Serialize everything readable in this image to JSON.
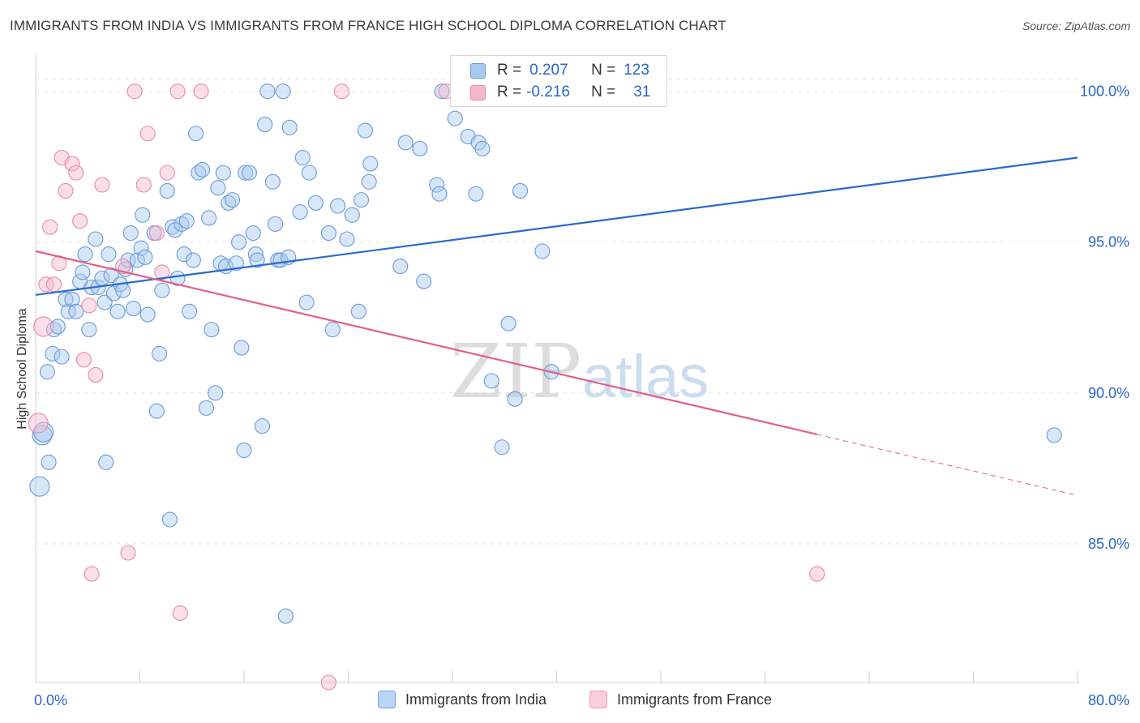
{
  "title": "IMMIGRANTS FROM INDIA VS IMMIGRANTS FROM FRANCE HIGH SCHOOL DIPLOMA CORRELATION CHART",
  "source": "Source: ZipAtlas.com",
  "watermark": {
    "zip": "ZIP",
    "atlas": "atlas"
  },
  "legend": {
    "india": {
      "r_label": "R =",
      "r_value": "0.207",
      "n_label": "N =",
      "n_value": "123"
    },
    "france": {
      "r_label": "R =",
      "r_value": "-0.216",
      "n_label": "N =",
      "n_value": "31"
    }
  },
  "colors": {
    "india_fill": "#a9c9f0",
    "india_stroke": "#6a9ad8",
    "india_line": "#2a6acb",
    "france_fill": "#f6b9cc",
    "france_stroke": "#e88aaa",
    "france_line": "#e0608c",
    "value_text": "#2a66c8"
  },
  "chart_data": {
    "type": "scatter",
    "title": "IMMIGRANTS FROM INDIA VS IMMIGRANTS FROM FRANCE HIGH SCHOOL DIPLOMA CORRELATION CHART",
    "xlabel": "",
    "ylabel": "High School Diploma",
    "xlim": [
      0,
      80
    ],
    "ylim": [
      80.4,
      101.2
    ],
    "x_tick_labels": [
      "0.0%",
      "80.0%"
    ],
    "y_ticks": [
      85,
      90,
      95,
      100
    ],
    "y_tick_labels": [
      "85.0%",
      "90.0%",
      "95.0%",
      "100.0%"
    ],
    "grid": true,
    "legend_position": "top-center",
    "series": [
      {
        "name": "Immigrants from India",
        "r": 0.207,
        "n": 123,
        "trend": {
          "x": [
            0,
            80
          ],
          "y": [
            93.25,
            97.8
          ],
          "dashed_from_x": null
        },
        "points": [
          [
            0.3,
            86.9
          ],
          [
            0.5,
            88.6
          ],
          [
            0.6,
            88.7
          ],
          [
            1.0,
            87.7
          ],
          [
            0.9,
            90.7
          ],
          [
            1.3,
            91.3
          ],
          [
            1.4,
            92.1
          ],
          [
            1.7,
            92.2
          ],
          [
            2.0,
            91.2
          ],
          [
            2.3,
            93.1
          ],
          [
            2.5,
            92.7
          ],
          [
            2.8,
            93.1
          ],
          [
            3.1,
            92.7
          ],
          [
            3.4,
            93.7
          ],
          [
            3.6,
            94.0
          ],
          [
            3.8,
            94.6
          ],
          [
            4.1,
            92.1
          ],
          [
            4.3,
            93.5
          ],
          [
            4.6,
            95.1
          ],
          [
            4.8,
            93.5
          ],
          [
            5.1,
            93.8
          ],
          [
            5.3,
            93.0
          ],
          [
            5.4,
            87.7
          ],
          [
            5.6,
            94.6
          ],
          [
            5.8,
            93.9
          ],
          [
            6.0,
            93.3
          ],
          [
            6.3,
            92.7
          ],
          [
            6.5,
            93.6
          ],
          [
            6.7,
            93.4
          ],
          [
            6.9,
            94.1
          ],
          [
            7.1,
            94.4
          ],
          [
            7.3,
            95.3
          ],
          [
            7.5,
            92.8
          ],
          [
            7.8,
            94.4
          ],
          [
            8.1,
            94.8
          ],
          [
            8.2,
            95.9
          ],
          [
            8.4,
            94.5
          ],
          [
            8.6,
            92.6
          ],
          [
            9.1,
            95.3
          ],
          [
            9.3,
            89.4
          ],
          [
            9.5,
            91.3
          ],
          [
            9.7,
            93.4
          ],
          [
            10.1,
            96.7
          ],
          [
            10.3,
            85.8
          ],
          [
            10.5,
            95.5
          ],
          [
            10.7,
            95.4
          ],
          [
            10.9,
            93.8
          ],
          [
            11.2,
            95.6
          ],
          [
            11.4,
            94.6
          ],
          [
            11.6,
            95.7
          ],
          [
            11.8,
            92.7
          ],
          [
            12.1,
            94.4
          ],
          [
            12.3,
            98.6
          ],
          [
            12.5,
            97.3
          ],
          [
            12.8,
            97.4
          ],
          [
            13.1,
            89.5
          ],
          [
            13.3,
            95.8
          ],
          [
            13.5,
            92.1
          ],
          [
            13.8,
            90.0
          ],
          [
            14.0,
            96.8
          ],
          [
            14.2,
            94.3
          ],
          [
            14.4,
            97.3
          ],
          [
            14.6,
            94.2
          ],
          [
            14.8,
            96.3
          ],
          [
            15.1,
            96.4
          ],
          [
            15.4,
            94.3
          ],
          [
            15.6,
            95.0
          ],
          [
            15.8,
            91.5
          ],
          [
            16.0,
            88.1
          ],
          [
            16.1,
            97.3
          ],
          [
            16.4,
            97.3
          ],
          [
            16.7,
            95.3
          ],
          [
            16.9,
            94.6
          ],
          [
            17.0,
            94.4
          ],
          [
            17.4,
            88.9
          ],
          [
            17.6,
            98.9
          ],
          [
            17.8,
            100.0
          ],
          [
            18.2,
            97.0
          ],
          [
            18.4,
            95.6
          ],
          [
            18.6,
            94.4
          ],
          [
            18.8,
            94.4
          ],
          [
            19.0,
            100.0
          ],
          [
            19.2,
            82.6
          ],
          [
            19.4,
            94.5
          ],
          [
            19.5,
            98.8
          ],
          [
            20.3,
            96.0
          ],
          [
            20.5,
            97.8
          ],
          [
            20.8,
            93.0
          ],
          [
            21.0,
            97.3
          ],
          [
            21.5,
            96.3
          ],
          [
            22.5,
            95.3
          ],
          [
            22.8,
            92.1
          ],
          [
            23.2,
            96.2
          ],
          [
            23.9,
            95.1
          ],
          [
            24.3,
            95.9
          ],
          [
            24.8,
            92.7
          ],
          [
            25.0,
            96.4
          ],
          [
            25.3,
            98.7
          ],
          [
            25.6,
            97.0
          ],
          [
            25.7,
            97.6
          ],
          [
            28.0,
            94.2
          ],
          [
            28.4,
            98.3
          ],
          [
            29.5,
            98.1
          ],
          [
            29.8,
            93.7
          ],
          [
            30.8,
            96.9
          ],
          [
            31.0,
            96.6
          ],
          [
            31.2,
            100.0
          ],
          [
            32.2,
            99.1
          ],
          [
            33.2,
            98.5
          ],
          [
            33.8,
            96.6
          ],
          [
            34.0,
            98.3
          ],
          [
            34.3,
            98.1
          ],
          [
            35.0,
            90.4
          ],
          [
            35.8,
            88.2
          ],
          [
            36.3,
            92.3
          ],
          [
            36.8,
            89.8
          ],
          [
            37.2,
            96.7
          ],
          [
            38.9,
            94.7
          ],
          [
            39.6,
            90.7
          ],
          [
            78.2,
            88.6
          ]
        ]
      },
      {
        "name": "Immigrants from France",
        "r": -0.216,
        "n": 31,
        "trend": {
          "x": [
            0,
            80
          ],
          "y": [
            94.7,
            86.6
          ],
          "dashed_from_x": 60
        },
        "points": [
          [
            0.2,
            89.0
          ],
          [
            0.6,
            92.2
          ],
          [
            0.8,
            93.6
          ],
          [
            1.1,
            95.5
          ],
          [
            1.4,
            93.6
          ],
          [
            1.8,
            94.3
          ],
          [
            2.0,
            97.8
          ],
          [
            2.3,
            96.7
          ],
          [
            2.8,
            97.6
          ],
          [
            3.1,
            97.3
          ],
          [
            3.4,
            95.7
          ],
          [
            3.7,
            91.1
          ],
          [
            4.1,
            92.9
          ],
          [
            4.3,
            84.0
          ],
          [
            4.6,
            90.6
          ],
          [
            5.1,
            96.9
          ],
          [
            6.7,
            94.2
          ],
          [
            7.1,
            84.7
          ],
          [
            7.6,
            100.0
          ],
          [
            8.3,
            96.9
          ],
          [
            8.6,
            98.6
          ],
          [
            9.3,
            95.3
          ],
          [
            9.7,
            94.0
          ],
          [
            10.1,
            97.3
          ],
          [
            10.9,
            100.0
          ],
          [
            11.1,
            82.7
          ],
          [
            12.7,
            100.0
          ],
          [
            22.5,
            80.4
          ],
          [
            23.5,
            100.0
          ],
          [
            31.5,
            100.0
          ],
          [
            60.0,
            84.0
          ]
        ]
      }
    ]
  }
}
